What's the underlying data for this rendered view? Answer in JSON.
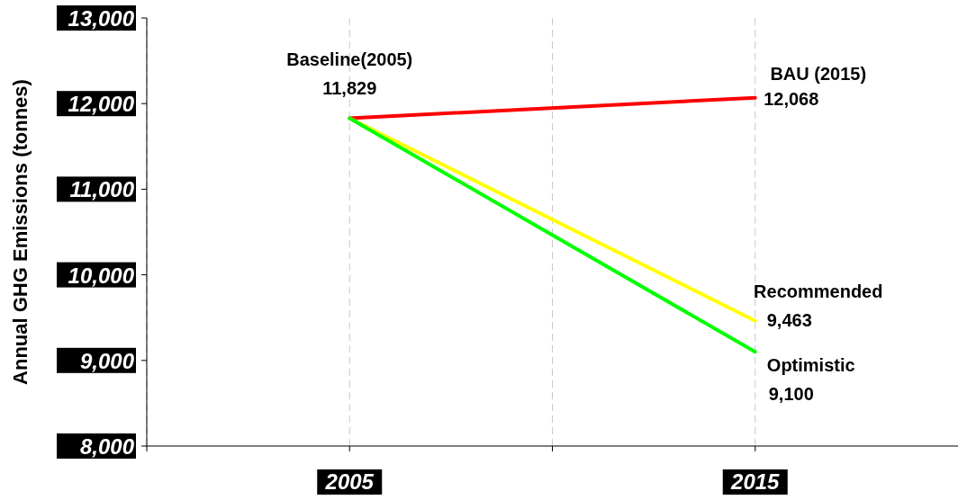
{
  "chart_data": {
    "type": "line",
    "ylabel": "Annual GHG Emissions (tonnes)",
    "x": [
      2005,
      2015
    ],
    "xlim": [
      2000,
      2020
    ],
    "xticks": [
      {
        "value": 2000,
        "label": null
      },
      2005,
      {
        "value": 2010,
        "label": null
      },
      2015
    ],
    "ylim": [
      8000,
      13000
    ],
    "yticks": [
      {
        "value": 8000,
        "label": "8,000"
      },
      {
        "value": 9000,
        "label": "9,000"
      },
      {
        "value": 10000,
        "label": "10,000"
      },
      {
        "value": 11000,
        "label": "11,000"
      },
      {
        "value": 12000,
        "label": "12,000"
      },
      {
        "value": 13000,
        "label": "13,000"
      }
    ],
    "grid": "x",
    "marker": "none",
    "line_style": "solid",
    "series": [
      {
        "name": "BAU (2015)",
        "color": "#ff0000",
        "values": [
          11829,
          12068
        ],
        "value_labels": [
          null,
          "12,068"
        ]
      },
      {
        "name": "Recommended",
        "color": "#ffff00",
        "values": [
          11829,
          9463
        ],
        "value_labels": [
          null,
          "9,463"
        ]
      },
      {
        "name": "Optimistic",
        "color": "#00ff00",
        "values": [
          11829,
          9100
        ],
        "value_labels": [
          null,
          "9,100"
        ]
      }
    ],
    "annotations": [
      {
        "text": "Baseline(2005)",
        "x": 2005,
        "y": 11829
      },
      {
        "text": "11,829",
        "x": 2005,
        "y": 11829
      }
    ]
  }
}
